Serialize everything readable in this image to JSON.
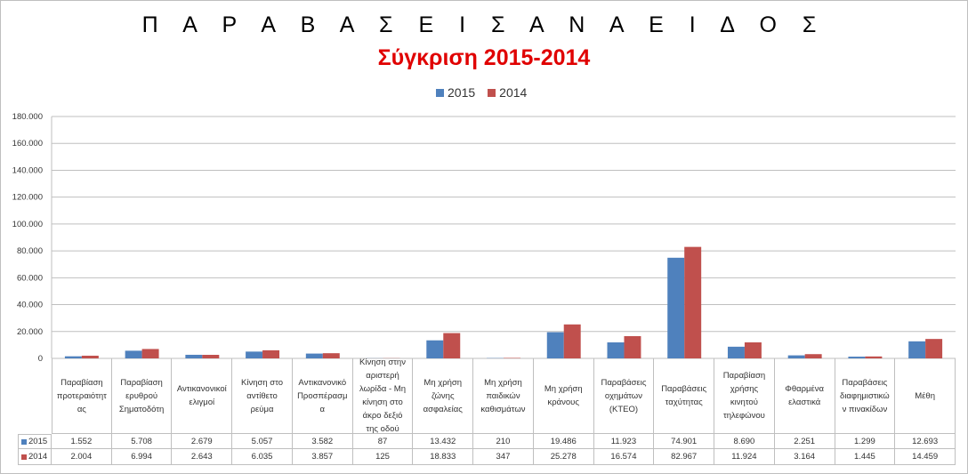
{
  "chart_data": {
    "type": "bar",
    "title": "Π Α Ρ Α Β Α Σ Ε Ι Σ  Α Ν Α  Ε Ι Δ Ο Σ",
    "subtitle": "Σύγκριση 2015-2014",
    "categories": [
      "Παραβίαση προτεραιότητ ας",
      "Παραβίαση ερυθρού Σηματοδότη",
      "Αντικανονικοί ελιγμοί",
      "Κίνηση στο αντίθετο ρεύμα",
      "Αντικανονικό Προσπέρασμ α",
      "Κίνηση στην αριστερή λωρίδα - Μη κίνηση στο άκρο δεξιό της οδού",
      "Μη χρήση ζώνης ασφαλείας",
      "Μη χρήση παιδικών καθισμάτων",
      "Μη χρήση κράνους",
      "Παραβάσεις οχημάτων (ΚΤΕΟ)",
      "Παραβάσεις ταχύτητας",
      "Παραβίαση χρήσης κινητού τηλεφώνου",
      "Φθαρμένα ελαστικά",
      "Παραβάσεις διαφημιστικώ ν πινακίδων",
      "Μέθη"
    ],
    "series": [
      {
        "name": "2015",
        "color": "#4f81bd",
        "values": [
          1552,
          5708,
          2679,
          5057,
          3582,
          87,
          13432,
          210,
          19486,
          11923,
          74901,
          8690,
          2251,
          1299,
          12693
        ],
        "labels": [
          "1.552",
          "5.708",
          "2.679",
          "5.057",
          "3.582",
          "87",
          "13.432",
          "210",
          "19.486",
          "11.923",
          "74.901",
          "8.690",
          "2.251",
          "1.299",
          "12.693"
        ]
      },
      {
        "name": "2014",
        "color": "#c0504d",
        "values": [
          2004,
          6994,
          2643,
          6035,
          3857,
          125,
          18833,
          347,
          25278,
          16574,
          82967,
          11924,
          3164,
          1445,
          14459
        ],
        "labels": [
          "2.004",
          "6.994",
          "2.643",
          "6.035",
          "3.857",
          "125",
          "18.833",
          "347",
          "25.278",
          "16.574",
          "82.967",
          "11.924",
          "3.164",
          "1.445",
          "14.459"
        ]
      }
    ],
    "ylim": [
      0,
      180000
    ],
    "yticks": [
      "0",
      "20.000",
      "40.000",
      "60.000",
      "80.000",
      "100.000",
      "120.000",
      "140.000",
      "160.000",
      "180.000"
    ],
    "grid": true,
    "legend": "top-center",
    "data_table": true
  }
}
